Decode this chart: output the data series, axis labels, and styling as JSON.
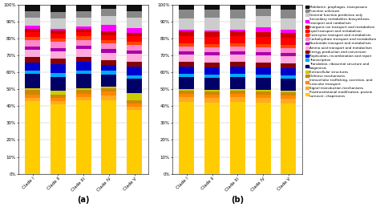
{
  "categories": [
    "Clade I",
    "Clade II",
    "Clade III",
    "Clade IV",
    "Clade V"
  ],
  "legend_labels": [
    "Mobilome: prophages, transposons",
    "Function unknown",
    "General function prediction only",
    "Secondary metabolites biosynthesis,\ntransport and catabolism",
    "Inorganic ion transport and metabolism",
    "Lipid transport and metabolism",
    "Coenzyme transport and metabolism",
    "Carbohydrate transport and metabolism",
    "Nucleotide transport and metabolism",
    "Amino acid transport and metabolism",
    "Energy production and conversion",
    "Replication, recombination and repair",
    "Transcription",
    "Translation, ribosomal structure and\nbiogenesis",
    "Extracellular structures",
    "Defense mechanisms",
    "Intracellular trafficking, secretion, and\nvesicular transport",
    "Signal transduction mechanisms",
    "Posttranslational modification, protein\nturnover, chaperones"
  ],
  "colors": [
    "#111111",
    "#888888",
    "#cccccc",
    "#ff00ff",
    "#cc0000",
    "#ff0000",
    "#ff4400",
    "#ff88cc",
    "#aa00aa",
    "#ffaadd",
    "#880000",
    "#0000cc",
    "#00aaff",
    "#000066",
    "#cccc00",
    "#cc8800",
    "#ff8800",
    "#ffaa22",
    "#ffcc00"
  ],
  "panel_a": {
    "data": [
      [
        3.5,
        4.0,
        3.5,
        2.5,
        3.5
      ],
      [
        4.0,
        4.0,
        4.0,
        4.0,
        4.0
      ],
      [
        5.0,
        6.0,
        5.0,
        5.5,
        6.0
      ],
      [
        1.5,
        1.0,
        1.5,
        4.0,
        3.0
      ],
      [
        2.0,
        2.0,
        2.0,
        2.0,
        2.0
      ],
      [
        3.0,
        3.0,
        2.5,
        3.0,
        3.0
      ],
      [
        2.0,
        2.0,
        2.0,
        2.0,
        2.0
      ],
      [
        3.5,
        3.5,
        3.5,
        3.5,
        3.5
      ],
      [
        2.0,
        2.0,
        2.0,
        2.0,
        2.0
      ],
      [
        4.5,
        4.5,
        4.5,
        4.5,
        4.5
      ],
      [
        3.0,
        3.0,
        3.0,
        3.0,
        3.0
      ],
      [
        5.0,
        5.5,
        5.0,
        3.5,
        5.0
      ],
      [
        2.0,
        2.0,
        2.0,
        2.0,
        2.0
      ],
      [
        8.5,
        8.5,
        8.5,
        7.5,
        8.5
      ],
      [
        1.0,
        2.0,
        1.0,
        1.0,
        4.0
      ],
      [
        2.5,
        2.0,
        2.0,
        2.0,
        2.0
      ],
      [
        2.0,
        2.0,
        2.0,
        2.0,
        2.0
      ],
      [
        2.0,
        2.0,
        2.0,
        3.0,
        2.0
      ],
      [
        43.0,
        41.0,
        43.0,
        44.0,
        37.5
      ]
    ]
  },
  "panel_b": {
    "data": [
      [
        3.0,
        3.0,
        3.0,
        2.5,
        3.0
      ],
      [
        5.5,
        5.0,
        5.5,
        4.5,
        5.5
      ],
      [
        7.0,
        8.0,
        7.0,
        7.0,
        7.0
      ],
      [
        1.0,
        1.0,
        1.0,
        3.0,
        2.0
      ],
      [
        3.0,
        3.0,
        3.0,
        3.0,
        3.0
      ],
      [
        4.5,
        4.5,
        4.5,
        4.5,
        4.5
      ],
      [
        2.0,
        2.0,
        2.0,
        2.0,
        2.0
      ],
      [
        3.0,
        3.0,
        3.0,
        3.0,
        3.0
      ],
      [
        2.0,
        2.0,
        2.0,
        2.0,
        2.0
      ],
      [
        4.5,
        4.5,
        4.5,
        4.5,
        4.5
      ],
      [
        3.0,
        3.0,
        3.0,
        3.0,
        3.0
      ],
      [
        4.5,
        4.5,
        4.5,
        4.5,
        4.5
      ],
      [
        2.0,
        2.0,
        2.0,
        2.0,
        2.0
      ],
      [
        7.5,
        7.5,
        7.5,
        7.5,
        7.5
      ],
      [
        1.0,
        1.0,
        1.0,
        1.0,
        1.0
      ],
      [
        2.0,
        2.0,
        2.0,
        2.0,
        2.0
      ],
      [
        2.0,
        2.0,
        2.0,
        2.0,
        2.0
      ],
      [
        3.0,
        3.0,
        3.0,
        3.0,
        3.0
      ],
      [
        44.5,
        44.0,
        44.5,
        44.0,
        44.0
      ]
    ]
  },
  "subtitle_a": "(a)",
  "subtitle_b": "(b)"
}
